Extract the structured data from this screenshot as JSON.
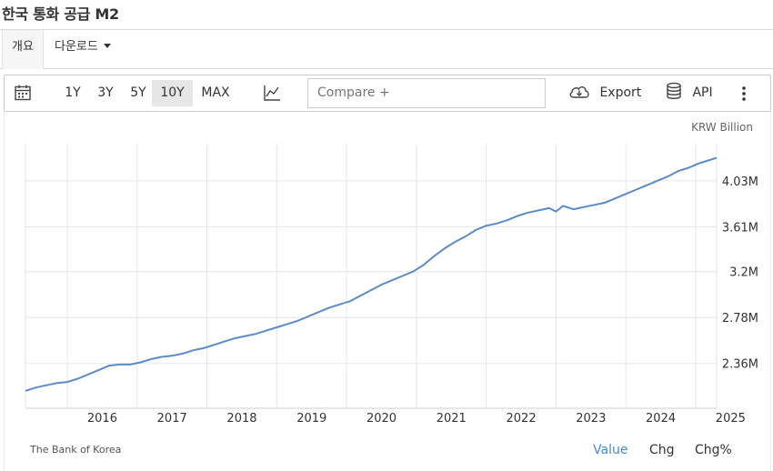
{
  "title": "한국 통화 공급 M2",
  "tabs": {
    "overview": "개요",
    "download": "다운로드"
  },
  "toolbar": {
    "ranges": [
      "1Y",
      "3Y",
      "5Y",
      "10Y",
      "MAX"
    ],
    "active_range": "10Y",
    "compare_placeholder": "Compare +",
    "export_label": "Export",
    "api_label": "API",
    "icons": [
      "calendar-icon",
      "line-chart-icon",
      "cloud-download-icon",
      "database-icon",
      "more-vertical-icon"
    ]
  },
  "unit": "KRW Billion",
  "source": "The Bank of Korea",
  "bottom_tabs": {
    "value": "Value",
    "chg": "Chg",
    "chg_pct": "Chg%"
  },
  "colors": {
    "line": "#5b8bc9",
    "active_tab": "#3d8fd6",
    "grid": "#e6e6e6"
  },
  "chart_data": {
    "type": "line",
    "x_tick_labels": [
      "2016",
      "2017",
      "2018",
      "2019",
      "2020",
      "2021",
      "2022",
      "2023",
      "2024",
      "2025"
    ],
    "y_tick_labels": [
      "2.36M",
      "2.78M",
      "3.2M",
      "3.61M",
      "4.03M"
    ],
    "y_ticks": [
      2.36,
      2.78,
      3.2,
      3.61,
      4.03
    ],
    "xlim": [
      2015.4,
      2025.3
    ],
    "ylim": [
      1.95,
      4.37
    ],
    "unit": "KRW Billion",
    "series": [
      {
        "x": [
          2015.4,
          2015.55,
          2015.7,
          2015.85,
          2016.0,
          2016.15,
          2016.3,
          2016.45,
          2016.6,
          2016.75,
          2016.9,
          2017.05,
          2017.2,
          2017.35,
          2017.5,
          2017.65,
          2017.8,
          2017.95,
          2018.1,
          2018.25,
          2018.4,
          2018.55,
          2018.7,
          2018.85,
          2019.0,
          2019.15,
          2019.3,
          2019.45,
          2019.6,
          2019.75,
          2019.9,
          2020.05,
          2020.2,
          2020.35,
          2020.5,
          2020.65,
          2020.8,
          2020.95,
          2021.1,
          2021.25,
          2021.4,
          2021.55,
          2021.7,
          2021.85,
          2022.0,
          2022.15,
          2022.3,
          2022.45,
          2022.6,
          2022.75,
          2022.9,
          2023.0,
          2023.1,
          2023.25,
          2023.4,
          2023.55,
          2023.7,
          2023.85,
          2024.0,
          2024.15,
          2024.3,
          2024.45,
          2024.6,
          2024.75,
          2024.9,
          2025.05,
          2025.2,
          2025.3
        ],
        "values": [
          2.11,
          2.14,
          2.16,
          2.18,
          2.19,
          2.22,
          2.26,
          2.3,
          2.34,
          2.35,
          2.35,
          2.37,
          2.4,
          2.42,
          2.43,
          2.45,
          2.48,
          2.5,
          2.53,
          2.56,
          2.59,
          2.61,
          2.63,
          2.66,
          2.69,
          2.72,
          2.75,
          2.79,
          2.83,
          2.87,
          2.9,
          2.93,
          2.98,
          3.03,
          3.08,
          3.12,
          3.16,
          3.2,
          3.26,
          3.34,
          3.41,
          3.47,
          3.52,
          3.58,
          3.62,
          3.64,
          3.67,
          3.71,
          3.74,
          3.76,
          3.78,
          3.75,
          3.8,
          3.77,
          3.79,
          3.81,
          3.83,
          3.87,
          3.91,
          3.95,
          3.99,
          4.03,
          4.07,
          4.12,
          4.15,
          4.19,
          4.22,
          4.24
        ]
      }
    ]
  }
}
